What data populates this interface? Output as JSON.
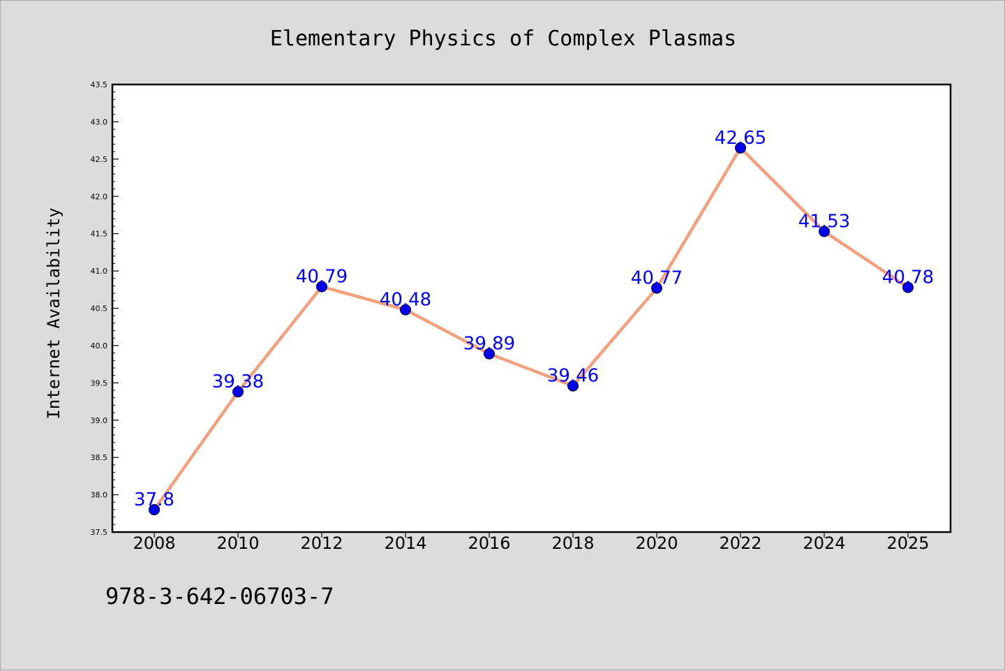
{
  "chart_data": {
    "type": "line",
    "title": "Elementary Physics of Complex Plasmas",
    "ylabel": "Internet Availability",
    "xlabel": "",
    "categories": [
      "2008",
      "2010",
      "2012",
      "2014",
      "2016",
      "2018",
      "2020",
      "2022",
      "2024",
      "2025"
    ],
    "series": [
      {
        "values": [
          37.8,
          39.38,
          40.79,
          40.48,
          39.89,
          39.46,
          40.77,
          42.65,
          41.53,
          40.78
        ],
        "labels": [
          "37.8",
          "39.38",
          "40.79",
          "40.48",
          "39.89",
          "39.46",
          "40.77",
          "42.65",
          "41.53",
          "40.78"
        ]
      }
    ],
    "ylim": [
      37.5,
      43.5
    ],
    "yticks": [
      "37.5",
      "38.0",
      "38.5",
      "39.0",
      "39.5",
      "40.0",
      "40.5",
      "41.0",
      "41.5",
      "42.0",
      "42.5",
      "43.0",
      "43.5"
    ],
    "grid": false,
    "legend": "none",
    "line_color": "#f4a07c",
    "marker_color": "#0000ee",
    "label_color": "#0000ff",
    "plot_background": "#ffffff",
    "page_background": "#dcdcdc"
  },
  "footnote": "978-3-642-06703-7"
}
